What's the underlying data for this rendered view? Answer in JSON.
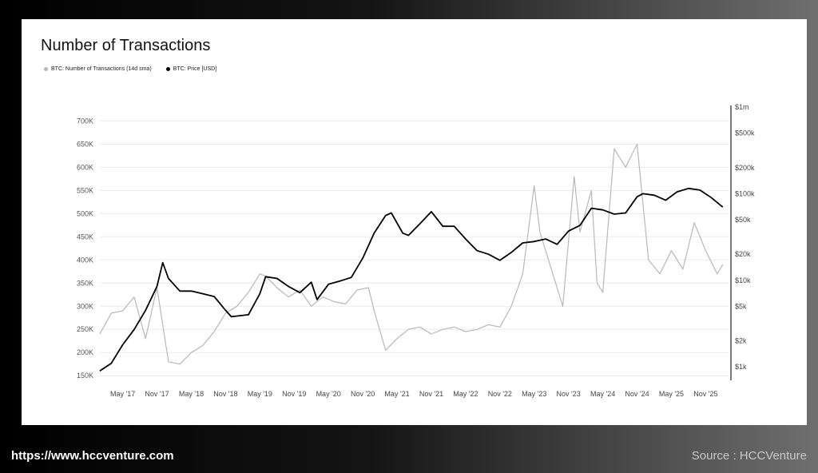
{
  "chart_data": {
    "type": "line",
    "title": "Number of Transactions",
    "legend": "top-left",
    "grid": true,
    "x_tick_labels": [
      "May '17",
      "Nov '17",
      "May '18",
      "Nov '18",
      "May '19",
      "Nov '19",
      "May '20",
      "Nov '20",
      "May '21",
      "Nov '21",
      "May '22",
      "Nov '22",
      "May '23",
      "Nov '23",
      "May '24",
      "Nov '24",
      "May '25",
      "Nov '25"
    ],
    "x_range": [
      "2017-01",
      "2026-03"
    ],
    "y_left": {
      "ticks": [
        150000,
        200000,
        250000,
        300000,
        350000,
        400000,
        450000,
        500000,
        550000,
        600000,
        650000,
        700000
      ],
      "tick_labels": [
        "150K",
        "200K",
        "250K",
        "300K",
        "350K",
        "400K",
        "450K",
        "500K",
        "550K",
        "600K",
        "650K",
        "700K"
      ],
      "range": [
        140000,
        730000
      ]
    },
    "y_right": {
      "scale": "log",
      "ticks": [
        1000,
        2000,
        5000,
        10000,
        20000,
        50000,
        100000,
        200000,
        500000,
        1000000
      ],
      "tick_labels": [
        "$1k",
        "$2k",
        "$5k",
        "$10k",
        "$20k",
        "$50k",
        "$100k",
        "$200k",
        "$500k",
        "$1m"
      ],
      "range": [
        700,
        1000000
      ]
    },
    "series": [
      {
        "name": "BTC: Number of Transactions (14d sma)",
        "axis": "left",
        "color": "#b8b8b8",
        "x": [
          "2017-01",
          "2017-03",
          "2017-05",
          "2017-07",
          "2017-09",
          "2017-11",
          "2017-12",
          "2018-01",
          "2018-03",
          "2018-05",
          "2018-07",
          "2018-09",
          "2018-11",
          "2019-01",
          "2019-03",
          "2019-05",
          "2019-06",
          "2019-08",
          "2019-10",
          "2019-12",
          "2020-02",
          "2020-04",
          "2020-06",
          "2020-08",
          "2020-10",
          "2020-12",
          "2021-01",
          "2021-03",
          "2021-05",
          "2021-07",
          "2021-09",
          "2021-11",
          "2022-01",
          "2022-03",
          "2022-05",
          "2022-07",
          "2022-09",
          "2022-11",
          "2023-01",
          "2023-03",
          "2023-05",
          "2023-06",
          "2023-08",
          "2023-10",
          "2023-12",
          "2024-01",
          "2024-03",
          "2024-04",
          "2024-05",
          "2024-07",
          "2024-09",
          "2024-11",
          "2025-01",
          "2025-03",
          "2025-05",
          "2025-07",
          "2025-09",
          "2025-11",
          "2026-01",
          "2026-02"
        ],
        "values": [
          240000,
          285000,
          290000,
          320000,
          230000,
          340000,
          260000,
          180000,
          175000,
          200000,
          215000,
          245000,
          285000,
          300000,
          330000,
          370000,
          365000,
          340000,
          320000,
          335000,
          300000,
          320000,
          310000,
          305000,
          335000,
          340000,
          290000,
          205000,
          230000,
          250000,
          255000,
          240000,
          250000,
          255000,
          245000,
          250000,
          260000,
          255000,
          300000,
          370000,
          560000,
          460000,
          380000,
          300000,
          580000,
          460000,
          550000,
          350000,
          330000,
          640000,
          600000,
          650000,
          400000,
          370000,
          420000,
          380000,
          480000,
          420000,
          370000,
          390000
        ]
      },
      {
        "name": "BTC: Price [USD]",
        "axis": "right",
        "color": "#000000",
        "x": [
          "2017-01",
          "2017-03",
          "2017-05",
          "2017-07",
          "2017-09",
          "2017-11",
          "2017-12",
          "2018-01",
          "2018-03",
          "2018-05",
          "2018-07",
          "2018-09",
          "2018-11",
          "2018-12",
          "2019-03",
          "2019-05",
          "2019-06",
          "2019-08",
          "2019-10",
          "2019-12",
          "2020-02",
          "2020-03",
          "2020-05",
          "2020-07",
          "2020-09",
          "2020-11",
          "2021-01",
          "2021-03",
          "2021-04",
          "2021-06",
          "2021-07",
          "2021-09",
          "2021-11",
          "2022-01",
          "2022-03",
          "2022-05",
          "2022-07",
          "2022-09",
          "2022-11",
          "2023-01",
          "2023-03",
          "2023-05",
          "2023-07",
          "2023-09",
          "2023-11",
          "2024-01",
          "2024-03",
          "2024-05",
          "2024-07",
          "2024-09",
          "2024-11",
          "2024-12",
          "2025-02",
          "2025-04",
          "2025-06",
          "2025-08",
          "2025-10",
          "2025-12",
          "2026-02"
        ],
        "values": [
          900,
          1100,
          1800,
          2700,
          4500,
          8500,
          16000,
          10500,
          7500,
          7500,
          7000,
          6500,
          4500,
          3800,
          4000,
          7000,
          11000,
          10500,
          8500,
          7200,
          9500,
          6000,
          9000,
          9800,
          10800,
          18000,
          35000,
          56000,
          60000,
          35000,
          33000,
          45000,
          62000,
          42000,
          42000,
          30000,
          22000,
          20000,
          17000,
          21000,
          27000,
          28000,
          30000,
          26000,
          37000,
          43000,
          68000,
          65000,
          58000,
          60000,
          92000,
          100000,
          96000,
          84000,
          105000,
          115000,
          110000,
          90000,
          70000
        ]
      }
    ]
  },
  "legend": [
    {
      "label": "BTC: Number of Transactions (14d sma)",
      "color": "#b8b8b8"
    },
    {
      "label": "BTC: Price [USD]",
      "color": "#000000"
    }
  ],
  "footer": {
    "url": "https://www.hccventure.com",
    "source": "Source : HCCVenture"
  }
}
